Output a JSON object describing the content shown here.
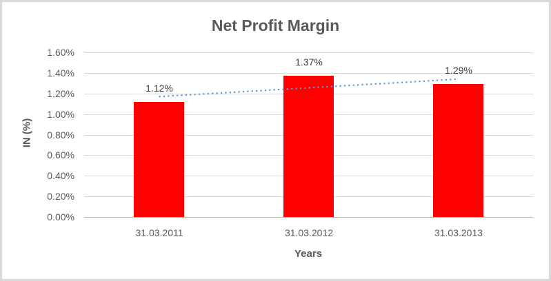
{
  "frame": {
    "background": "#ffffff",
    "border_color": "#d9d9d9"
  },
  "chart_data": {
    "type": "bar",
    "title": "Net Profit Margin",
    "xlabel": "Years",
    "ylabel": "IN (%)",
    "categories": [
      "31.03.2011",
      "31.03.2012",
      "31.03.2013"
    ],
    "values": [
      1.12,
      1.37,
      1.29
    ],
    "value_labels": [
      "1.12%",
      "1.37%",
      "1.29%"
    ],
    "ylim": [
      0,
      1.6
    ],
    "ytick_step": 0.2,
    "ytick_labels": [
      "0.00%",
      "0.20%",
      "0.40%",
      "0.60%",
      "0.80%",
      "1.00%",
      "1.20%",
      "1.40%",
      "1.60%"
    ],
    "grid": true,
    "legend": "none",
    "bar_color": "#ff0000",
    "trendline": {
      "type": "linear",
      "style": "dotted",
      "color": "#5b9bd5",
      "start_value": 1.17,
      "end_value": 1.34
    },
    "colors": {
      "title": "#595959",
      "axis_labels": "#595959",
      "data_labels": "#404040",
      "gridline": "#d9d9d9",
      "axis_line": "#b3b3b3"
    }
  }
}
